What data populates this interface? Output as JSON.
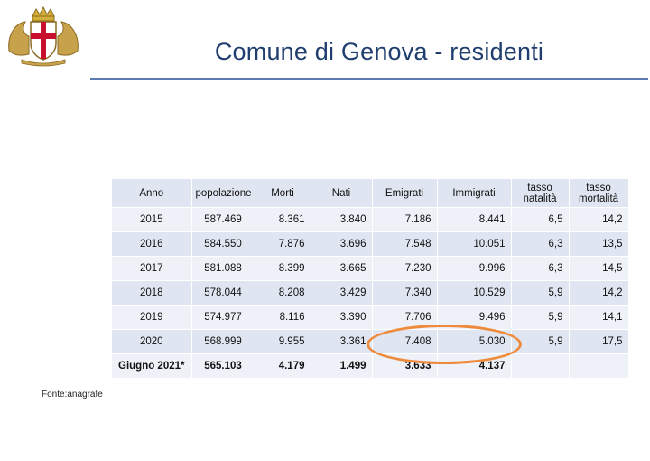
{
  "slide": {
    "title": "Comune di Genova - residenti",
    "source": "Fonte:anagrafe",
    "crest_icon": "genoa-coat-of-arms-icon",
    "highlight_color": "#ee8a3c",
    "title_color": "#1f3d6e"
  },
  "table": {
    "headers": [
      "Anno",
      "popolazione",
      "Morti",
      "Nati",
      "Emigrati",
      "Immigrati",
      "tasso natalità",
      "tasso mortalità"
    ],
    "rows": [
      [
        "2015",
        "587.469",
        "8.361",
        "3.840",
        "7.186",
        "8.441",
        "6,5",
        "14,2"
      ],
      [
        "2016",
        "584.550",
        "7.876",
        "3.696",
        "7.548",
        "10.051",
        "6,3",
        "13,5"
      ],
      [
        "2017",
        "581.088",
        "8.399",
        "3.665",
        "7.230",
        "9.996",
        "6,3",
        "14,5"
      ],
      [
        "2018",
        "578.044",
        "8.208",
        "3.429",
        "7.340",
        "10.529",
        "5,9",
        "14,2"
      ],
      [
        "2019",
        "574.977",
        "8.116",
        "3.390",
        "7.706",
        "9.496",
        "5,9",
        "14,1"
      ],
      [
        "2020",
        "568.999",
        "9.955",
        "3.361",
        "7.408",
        "5.030",
        "5,9",
        "17,5"
      ],
      [
        "Giugno 2021*",
        "565.103",
        "4.179",
        "1.499",
        "3.633",
        "4.137",
        "",
        ""
      ]
    ]
  }
}
